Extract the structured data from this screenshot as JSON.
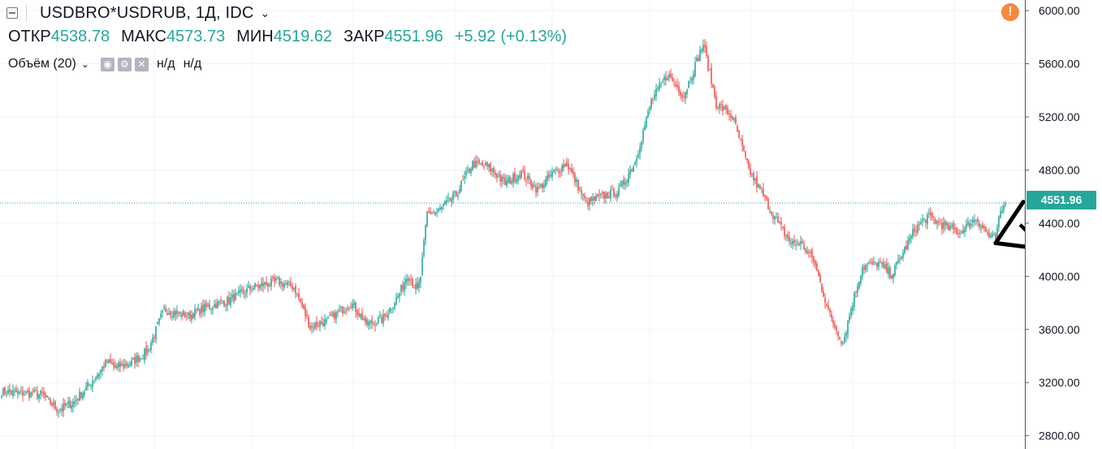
{
  "header": {
    "symbol": "USDBRO*USDRUB, 1Д, IDC",
    "ohlc": {
      "open_label": "ОТКР",
      "open_value": "4538.78",
      "high_label": "МАКС",
      "high_value": "4573.73",
      "low_label": "МИН",
      "low_value": "4519.62",
      "close_label": "ЗАКР",
      "close_value": "4551.96",
      "change": "+5.92",
      "change_pct": "(+0.13%)"
    },
    "volume": {
      "label": "Объём (20)",
      "value1": "н/д",
      "value2": "н/д"
    },
    "warning_glyph": "!"
  },
  "price_tag": "4551.96",
  "colors": {
    "up": "#26a69a",
    "down": "#ef5350",
    "grid": "#f0f3fa",
    "warning": "#f6893d",
    "drawing": "#000000"
  },
  "chart_data": {
    "type": "candlestick",
    "ylim": [
      2700,
      6080
    ],
    "y_ticks": [
      "6000.00",
      "5600.00",
      "5200.00",
      "4800.00",
      "4400.00",
      "4000.00",
      "3600.00",
      "3200.00",
      "2800.00"
    ],
    "last_price": 4551.96,
    "anchors": [
      [
        0,
        3130
      ],
      [
        25,
        3110
      ],
      [
        35,
        2990
      ],
      [
        45,
        3060
      ],
      [
        55,
        3200
      ],
      [
        65,
        3360
      ],
      [
        70,
        3310
      ],
      [
        80,
        3350
      ],
      [
        90,
        3440
      ],
      [
        100,
        3750
      ],
      [
        115,
        3700
      ],
      [
        125,
        3760
      ],
      [
        140,
        3820
      ],
      [
        155,
        3920
      ],
      [
        170,
        3960
      ],
      [
        180,
        3920
      ],
      [
        190,
        3620
      ],
      [
        200,
        3660
      ],
      [
        215,
        3800
      ],
      [
        225,
        3640
      ],
      [
        235,
        3680
      ],
      [
        245,
        3870
      ],
      [
        250,
        4020
      ],
      [
        256,
        3890
      ],
      [
        258,
        4000
      ],
      [
        262,
        4480
      ],
      [
        268,
        4480
      ],
      [
        280,
        4620
      ],
      [
        290,
        4850
      ],
      [
        300,
        4820
      ],
      [
        310,
        4700
      ],
      [
        320,
        4780
      ],
      [
        330,
        4650
      ],
      [
        340,
        4780
      ],
      [
        348,
        4850
      ],
      [
        352,
        4750
      ],
      [
        360,
        4550
      ],
      [
        370,
        4600
      ],
      [
        380,
        4640
      ],
      [
        390,
        4860
      ],
      [
        400,
        5320
      ],
      [
        410,
        5520
      ],
      [
        420,
        5360
      ],
      [
        432,
        5750
      ],
      [
        440,
        5300
      ],
      [
        450,
        5200
      ],
      [
        460,
        4800
      ],
      [
        470,
        4580
      ],
      [
        478,
        4400
      ],
      [
        486,
        4250
      ],
      [
        492,
        4250
      ],
      [
        500,
        4120
      ],
      [
        510,
        3700
      ],
      [
        518,
        3500
      ],
      [
        524,
        3810
      ],
      [
        530,
        4070
      ],
      [
        540,
        4100
      ],
      [
        548,
        4010
      ],
      [
        556,
        4200
      ],
      [
        562,
        4350
      ],
      [
        570,
        4450
      ],
      [
        580,
        4380
      ],
      [
        590,
        4330
      ],
      [
        600,
        4440
      ],
      [
        608,
        4300
      ],
      [
        612,
        4280
      ],
      [
        615,
        4480
      ],
      [
        618,
        4546
      ]
    ],
    "annotations": {
      "upper_line": [
        [
          612,
          4250
        ],
        [
          629,
          4560
        ]
      ],
      "lower_line": [
        [
          612,
          4250
        ],
        [
          642,
          4205
        ]
      ],
      "arrow_mark": "↓"
    }
  }
}
